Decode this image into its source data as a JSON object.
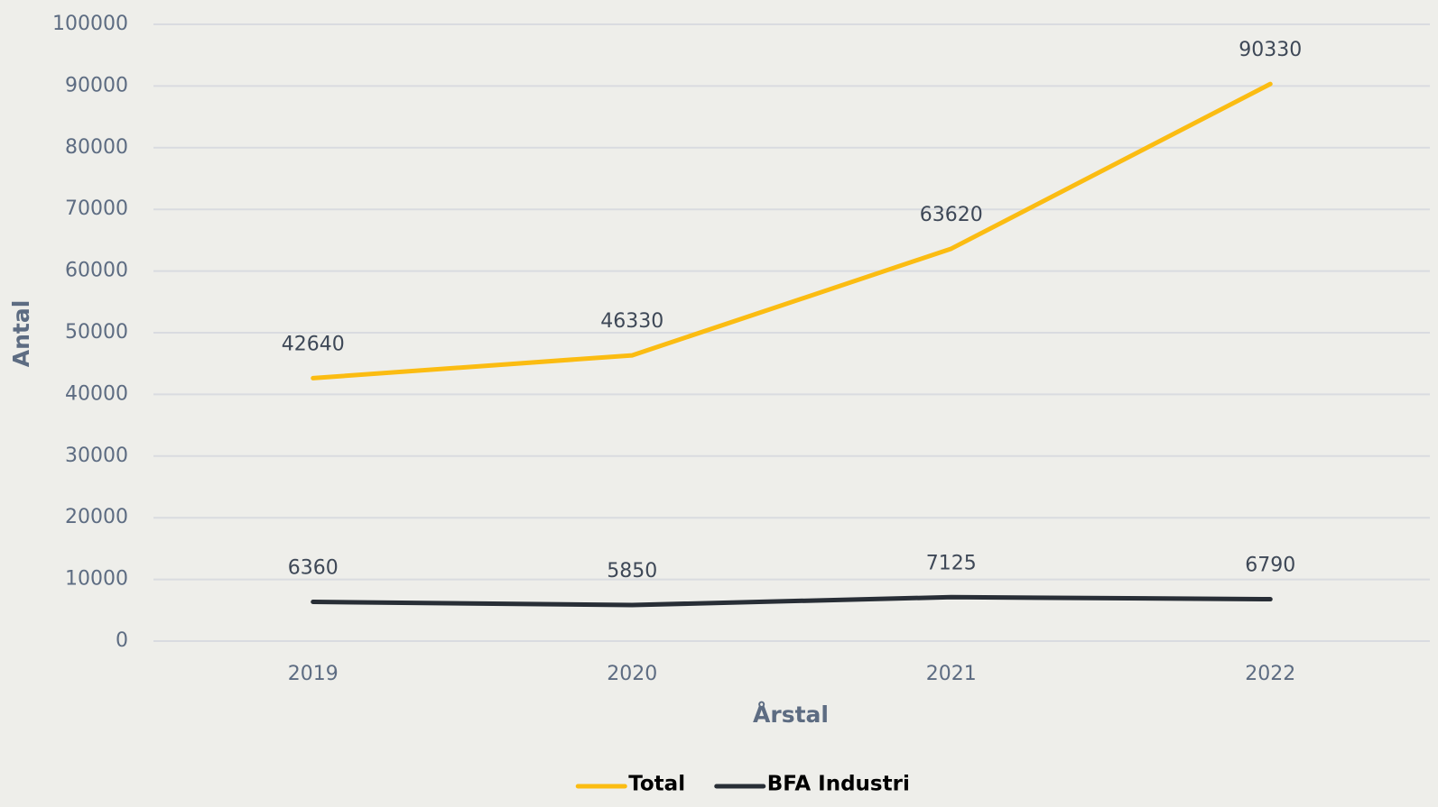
{
  "chart_data": {
    "type": "line",
    "x_label": "Årstal",
    "y_label": "Antal",
    "categories": [
      "2019",
      "2020",
      "2021",
      "2022"
    ],
    "series": [
      {
        "name": "Total",
        "color": "#fbbc12",
        "values": [
          42640,
          46330,
          63620,
          90330
        ]
      },
      {
        "name": "BFA Industri",
        "color": "#282e36",
        "values": [
          6360,
          5850,
          7125,
          6790
        ]
      }
    ],
    "ylim": [
      0,
      100000
    ],
    "yticks": [
      0,
      10000,
      20000,
      30000,
      40000,
      50000,
      60000,
      70000,
      80000,
      90000,
      100000
    ],
    "grid": true,
    "legend": "bottom"
  }
}
